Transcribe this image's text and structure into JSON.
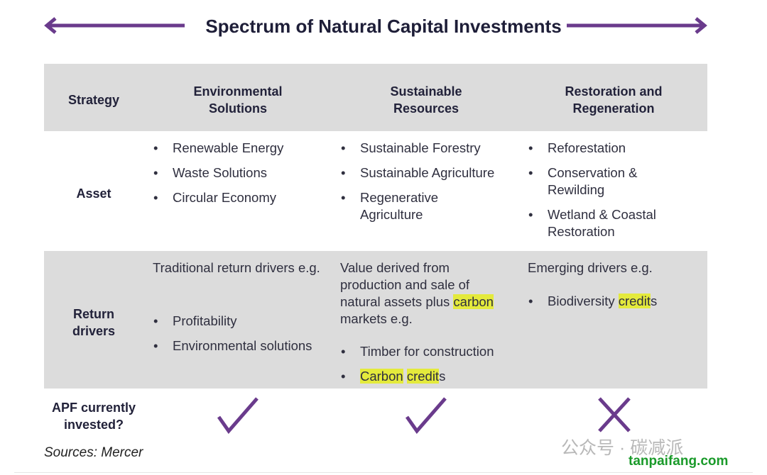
{
  "title": "Spectrum of Natural Capital Investments",
  "colors": {
    "accent": "#6a3b8c",
    "header_band": "#dcdcdc",
    "highlight": "#e4ea3c"
  },
  "headers": {
    "strategy": "Strategy",
    "col1": "Environmental Solutions",
    "col2": "Sustainable Resources",
    "col3": "Restoration and Regeneration"
  },
  "rows": {
    "asset": {
      "label": "Asset",
      "col1": [
        "Renewable Energy",
        "Waste Solutions",
        "Circular Economy"
      ],
      "col2": [
        "Sustainable Forestry",
        "Sustainable Agriculture",
        "Regenerative Agriculture"
      ],
      "col3": [
        "Reforestation",
        "Conservation & Rewilding",
        "Wetland & Coastal Restoration"
      ]
    },
    "return": {
      "label": "Return drivers",
      "col1": {
        "intro": "Traditional return drivers e.g.",
        "items": [
          "Profitability",
          "Environmental solutions"
        ]
      },
      "col2": {
        "intro_pre": "Value derived from production and sale of natural assets plus ",
        "intro_hl": "carbon",
        "intro_post": " markets e.g.",
        "item1": "Timber for construction",
        "item2_hl1": "Carbon",
        "item2_hl2": "credit",
        "item2_post": "s"
      },
      "col3": {
        "intro": "Emerging drivers e.g.",
        "item_pre": "Biodiversity ",
        "item_hl": "credit",
        "item_post": "s"
      }
    },
    "apf": {
      "label": "APF currently invested?",
      "col1": "check-icon",
      "col2": "check-icon",
      "col3": "cross-icon"
    }
  },
  "source": "Sources: Mercer",
  "watermark": {
    "text": "公众号 · 碳减派",
    "site": "tanpaifang.com"
  }
}
